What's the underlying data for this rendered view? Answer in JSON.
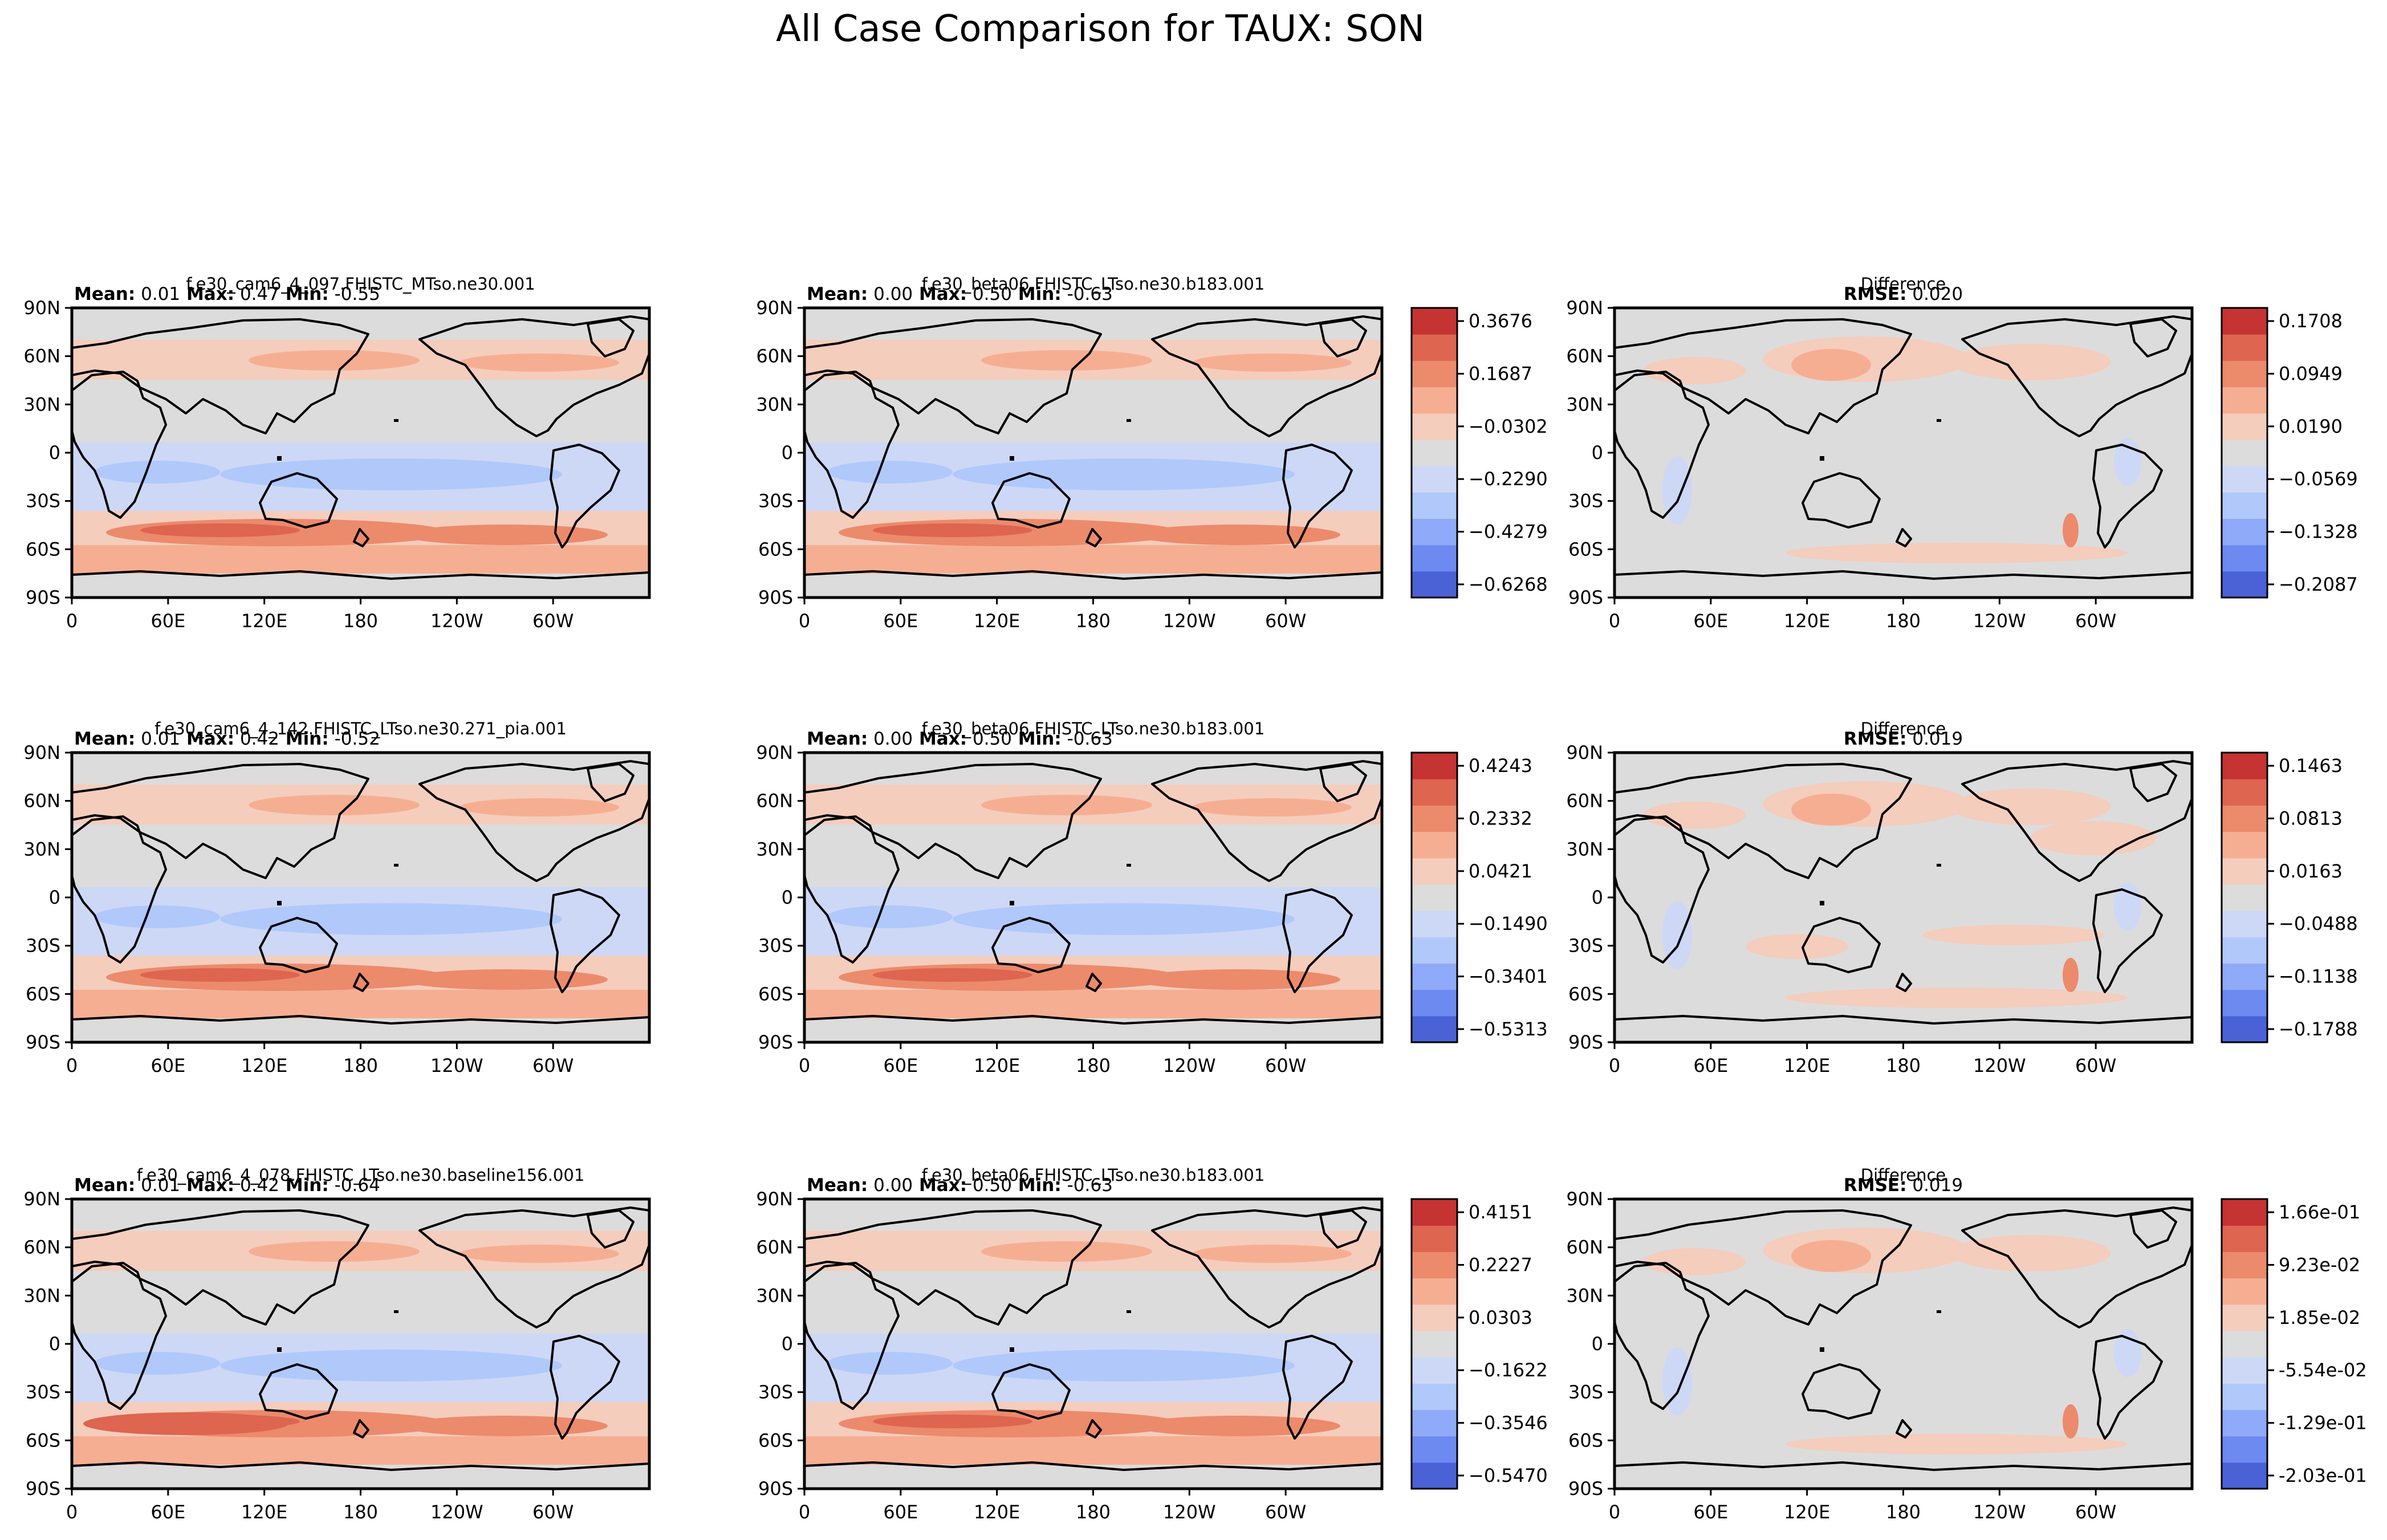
{
  "figure": {
    "title": "All Case Comparison for TAUX: SON",
    "x_tick_labels": [
      "0",
      "60E",
      "120E",
      "180",
      "120W",
      "60W"
    ],
    "y_tick_labels": [
      "90N",
      "60N",
      "30N",
      "0",
      "30S",
      "60S",
      "90S"
    ],
    "stat_labels": {
      "mean": "Mean:",
      "max": "Max:",
      "min": "Min:",
      "rmse": "RMSE:"
    },
    "colors": {
      "palette": [
        "#4a62d6",
        "#6c8af0",
        "#8faaf8",
        "#b1c8fb",
        "#cdd8f6",
        "#dcdcdc",
        "#f4cdbd",
        "#f6ae92",
        "#ec8a6c",
        "#de6550",
        "#c53333"
      ],
      "land_outline": "#000000"
    }
  },
  "rows": [
    {
      "test": {
        "title": "f.e30_cam6_4_097.FHISTC_MTso.ne30.001",
        "mean": "0.01",
        "max": "0.47",
        "min": "-0.55"
      },
      "reference": {
        "title": "f.e30_beta06.FHISTC_LTso.ne30.b183.001",
        "mean": "0.00",
        "max": "0.50",
        "min": "-0.63"
      },
      "main_colorbar": [
        "0.3676",
        "0.1687",
        "−0.0302",
        "−0.2290",
        "−0.4279",
        "−0.6268"
      ],
      "difference": {
        "title": "Difference",
        "rmse": "0.020"
      },
      "diff_colorbar": [
        "0.1708",
        "0.0949",
        "0.0190",
        "−0.0569",
        "−0.1328",
        "−0.2087"
      ]
    },
    {
      "test": {
        "title": "f.e30_cam6_4_142.FHISTC_LTso.ne30.271_pia.001",
        "mean": "0.01",
        "max": "0.42",
        "min": "-0.52"
      },
      "reference": {
        "title": "f.e30_beta06.FHISTC_LTso.ne30.b183.001",
        "mean": "0.00",
        "max": "0.50",
        "min": "-0.63"
      },
      "main_colorbar": [
        "0.4243",
        "0.2332",
        "0.0421",
        "−0.1490",
        "−0.3401",
        "−0.5313"
      ],
      "difference": {
        "title": "Difference",
        "rmse": "0.019"
      },
      "diff_colorbar": [
        "0.1463",
        "0.0813",
        "0.0163",
        "−0.0488",
        "−0.1138",
        "−0.1788"
      ]
    },
    {
      "test": {
        "title": "f.e30_cam6_4_078.FHISTC_LTso.ne30.baseline156.001",
        "mean": "0.01",
        "max": "0.42",
        "min": "-0.64"
      },
      "reference": {
        "title": "f.e30_beta06.FHISTC_LTso.ne30.b183.001",
        "mean": "0.00",
        "max": "0.50",
        "min": "-0.63"
      },
      "main_colorbar": [
        "0.4151",
        "0.2227",
        "0.0303",
        "−0.1622",
        "−0.3546",
        "−0.5470"
      ],
      "difference": {
        "title": "Difference",
        "rmse": "0.019"
      },
      "diff_colorbar": [
        "1.66e-01",
        "9.23e-02",
        "1.85e-02",
        "-5.54e-02",
        "-1.29e-01",
        "-2.03e-01"
      ]
    }
  ]
}
